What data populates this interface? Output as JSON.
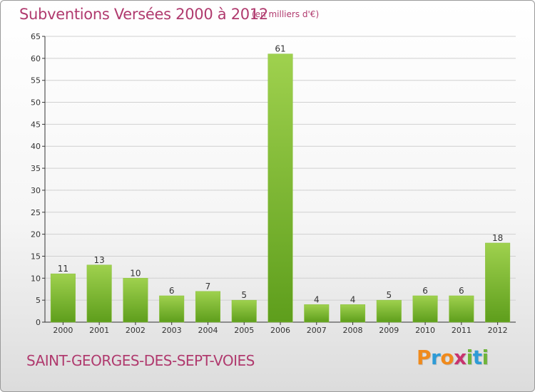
{
  "header": {
    "title": "Subventions Versées 2000 à 2012",
    "unit": "(en milliers d'€)"
  },
  "footer": {
    "commune": "SAINT-GEORGES-DES-SEPT-VOIES",
    "logo_letters": [
      "P",
      "r",
      "o",
      "x",
      "i",
      "t",
      "i"
    ],
    "logo_colors": [
      "#f08a1c",
      "#2e9bd6",
      "#f08a1c",
      "#c8336e",
      "#6fb43a",
      "#2e9bd6",
      "#6fb43a"
    ]
  },
  "colors": {
    "bar_light": "#9fd14e",
    "bar_dark": "#5e9e1c",
    "axis": "#333333",
    "grid": "#d0d0d0",
    "title": "#b03a6e"
  },
  "chart_data": {
    "type": "bar",
    "categories": [
      "2000",
      "2001",
      "2002",
      "2003",
      "2004",
      "2005",
      "2006",
      "2007",
      "2008",
      "2009",
      "2010",
      "2011",
      "2012"
    ],
    "values": [
      11,
      13,
      10,
      6,
      7,
      5,
      61,
      4,
      4,
      5,
      6,
      6,
      18
    ],
    "ylim": [
      0,
      65
    ],
    "yticks": [
      0,
      5,
      10,
      15,
      20,
      25,
      30,
      35,
      40,
      45,
      50,
      55,
      60,
      65
    ],
    "grid": true
  }
}
